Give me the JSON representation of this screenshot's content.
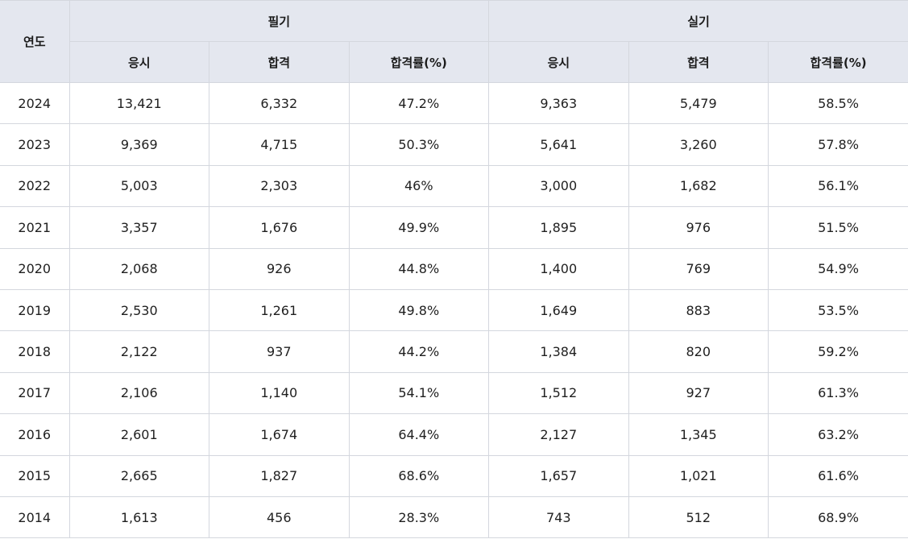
{
  "header": {
    "year": "연도",
    "written": "필기",
    "practical": "실기",
    "applicants": "응시",
    "passed": "합격",
    "pass_rate": "합격률(%)"
  },
  "rows": [
    {
      "year": "2024",
      "written": {
        "applicants": "13,421",
        "passed": "6,332",
        "rate": "47.2%"
      },
      "practical": {
        "applicants": "9,363",
        "passed": "5,479",
        "rate": "58.5%"
      }
    },
    {
      "year": "2023",
      "written": {
        "applicants": "9,369",
        "passed": "4,715",
        "rate": "50.3%"
      },
      "practical": {
        "applicants": "5,641",
        "passed": "3,260",
        "rate": "57.8%"
      }
    },
    {
      "year": "2022",
      "written": {
        "applicants": "5,003",
        "passed": "2,303",
        "rate": "46%"
      },
      "practical": {
        "applicants": "3,000",
        "passed": "1,682",
        "rate": "56.1%"
      }
    },
    {
      "year": "2021",
      "written": {
        "applicants": "3,357",
        "passed": "1,676",
        "rate": "49.9%"
      },
      "practical": {
        "applicants": "1,895",
        "passed": "976",
        "rate": "51.5%"
      }
    },
    {
      "year": "2020",
      "written": {
        "applicants": "2,068",
        "passed": "926",
        "rate": "44.8%"
      },
      "practical": {
        "applicants": "1,400",
        "passed": "769",
        "rate": "54.9%"
      }
    },
    {
      "year": "2019",
      "written": {
        "applicants": "2,530",
        "passed": "1,261",
        "rate": "49.8%"
      },
      "practical": {
        "applicants": "1,649",
        "passed": "883",
        "rate": "53.5%"
      }
    },
    {
      "year": "2018",
      "written": {
        "applicants": "2,122",
        "passed": "937",
        "rate": "44.2%"
      },
      "practical": {
        "applicants": "1,384",
        "passed": "820",
        "rate": "59.2%"
      }
    },
    {
      "year": "2017",
      "written": {
        "applicants": "2,106",
        "passed": "1,140",
        "rate": "54.1%"
      },
      "practical": {
        "applicants": "1,512",
        "passed": "927",
        "rate": "61.3%"
      }
    },
    {
      "year": "2016",
      "written": {
        "applicants": "2,601",
        "passed": "1,674",
        "rate": "64.4%"
      },
      "practical": {
        "applicants": "2,127",
        "passed": "1,345",
        "rate": "63.2%"
      }
    },
    {
      "year": "2015",
      "written": {
        "applicants": "2,665",
        "passed": "1,827",
        "rate": "68.6%"
      },
      "practical": {
        "applicants": "1,657",
        "passed": "1,021",
        "rate": "61.6%"
      }
    },
    {
      "year": "2014",
      "written": {
        "applicants": "1,613",
        "passed": "456",
        "rate": "28.3%"
      },
      "practical": {
        "applicants": "743",
        "passed": "512",
        "rate": "68.9%"
      }
    }
  ]
}
